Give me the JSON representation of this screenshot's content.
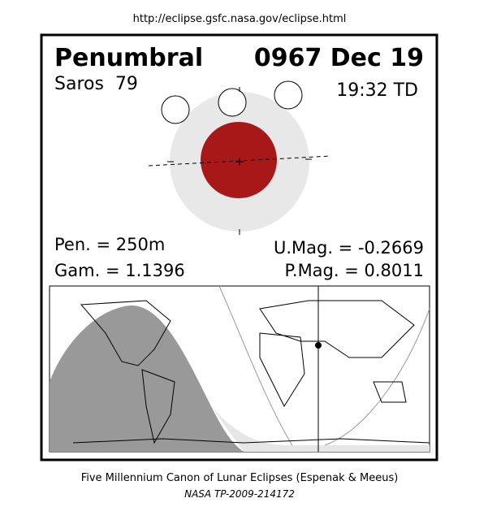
{
  "header": {
    "url": "http://eclipse.gsfc.nasa.gov/eclipse.html"
  },
  "eclipse": {
    "type": "Penumbral",
    "date": "0967 Dec 19",
    "saros": "Saros  79",
    "time": "19:32 TD",
    "pen": "Pen. = 250m",
    "gam": "Gam. = 1.1396",
    "umag": "U.Mag. = -0.2669",
    "pmag": "P.Mag. = 0.8011"
  },
  "footer": {
    "line1": "Five Millennium Canon of Lunar Eclipses (Espenak & Meeus)",
    "line2": "NASA TP-2009-214172"
  }
}
